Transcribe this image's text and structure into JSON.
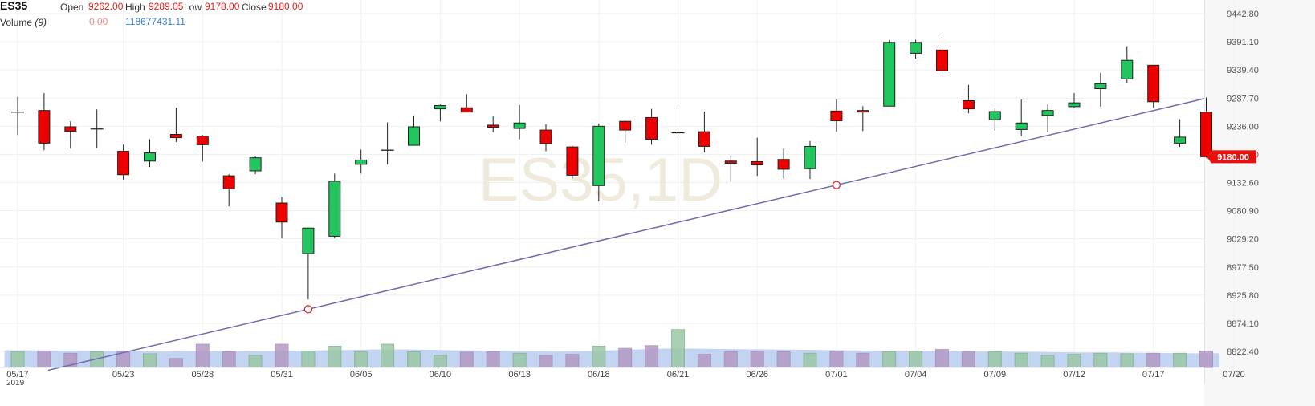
{
  "header": {
    "symbol": "ES35",
    "open_label": "Open",
    "open_value": "9262.00",
    "high_label": "High",
    "high_value": "9289.05",
    "low_label": "Low",
    "low_value": "9178.00",
    "close_label": "Close",
    "close_value": "9180.00",
    "volume_label": "Volume",
    "volume_period": "(9)",
    "volume_value_1": "0.00",
    "volume_value_2": "118677431.11"
  },
  "watermark": "ES35,1D",
  "colors": {
    "up": "#22c55e",
    "down": "#ee0000",
    "trendline": "#6d6db0",
    "volume_bar": "#9a9ac6",
    "volume_ma_area": "#b7cdf0",
    "last_price_bg": "#e8100d"
  },
  "chart_data": {
    "type": "candlestick",
    "y_axis": {
      "ticks": [
        "9442.80",
        "9391.10",
        "9339.40",
        "9287.70",
        "9236.00",
        "9184.30",
        "9132.60",
        "9080.90",
        "9029.20",
        "8977.50",
        "8925.80",
        "8874.10",
        "8822.40"
      ],
      "range": [
        8822.4,
        9442.8
      ]
    },
    "x_axis": {
      "tick_labels": [
        "05/17",
        "05/23",
        "05/28",
        "05/31",
        "06/05",
        "06/10",
        "06/13",
        "06/18",
        "06/21",
        "06/26",
        "07/01",
        "07/04",
        "07/09",
        "07/12",
        "07/17",
        "07/20"
      ],
      "year_label": "2019"
    },
    "last_price": "9180.00",
    "candles": [
      {
        "date": "05/17",
        "o": 9262,
        "h": 9290,
        "l": 9220,
        "c": 9262
      },
      {
        "date": "05/20",
        "o": 9265,
        "h": 9297,
        "l": 9192,
        "c": 9205
      },
      {
        "date": "05/21",
        "o": 9235,
        "h": 9245,
        "l": 9195,
        "c": 9227
      },
      {
        "date": "05/22",
        "o": 9231,
        "h": 9267,
        "l": 9196,
        "c": 9231
      },
      {
        "date": "05/23",
        "o": 9190,
        "h": 9202,
        "l": 9138,
        "c": 9147
      },
      {
        "date": "05/24",
        "o": 9172,
        "h": 9212,
        "l": 9161,
        "c": 9187
      },
      {
        "date": "05/27",
        "o": 9221,
        "h": 9270,
        "l": 9207,
        "c": 9215
      },
      {
        "date": "05/28",
        "o": 9218,
        "h": 9220,
        "l": 9171,
        "c": 9202
      },
      {
        "date": "05/29",
        "o": 9145,
        "h": 9148,
        "l": 9089,
        "c": 9121
      },
      {
        "date": "05/30",
        "o": 9154,
        "h": 9181,
        "l": 9148,
        "c": 9178
      },
      {
        "date": "05/31",
        "o": 9095,
        "h": 9106,
        "l": 9030,
        "c": 9060
      },
      {
        "date": "06/03",
        "o": 9002,
        "h": 9050,
        "l": 8918,
        "c": 9049
      },
      {
        "date": "06/04",
        "o": 9034,
        "h": 9149,
        "l": 9030,
        "c": 9135
      },
      {
        "date": "06/05",
        "o": 9166,
        "h": 9193,
        "l": 9149,
        "c": 9174
      },
      {
        "date": "06/06",
        "o": 9192,
        "h": 9243,
        "l": 9166,
        "c": 9192
      },
      {
        "date": "06/07",
        "o": 9201,
        "h": 9256,
        "l": 9201,
        "c": 9235
      },
      {
        "date": "06/10",
        "o": 9268,
        "h": 9276,
        "l": 9245,
        "c": 9274
      },
      {
        "date": "06/11",
        "o": 9270,
        "h": 9295,
        "l": 9262,
        "c": 9262
      },
      {
        "date": "06/12",
        "o": 9238,
        "h": 9255,
        "l": 9225,
        "c": 9234
      },
      {
        "date": "06/13",
        "o": 9232,
        "h": 9275,
        "l": 9212,
        "c": 9242
      },
      {
        "date": "06/14",
        "o": 9229,
        "h": 9240,
        "l": 9190,
        "c": 9204
      },
      {
        "date": "06/17",
        "o": 9198,
        "h": 9200,
        "l": 9140,
        "c": 9146
      },
      {
        "date": "06/18",
        "o": 9127,
        "h": 9241,
        "l": 9098,
        "c": 9236
      },
      {
        "date": "06/19",
        "o": 9245,
        "h": 9246,
        "l": 9205,
        "c": 9229
      },
      {
        "date": "06/20",
        "o": 9252,
        "h": 9268,
        "l": 9202,
        "c": 9212
      },
      {
        "date": "06/21",
        "o": 9224,
        "h": 9268,
        "l": 9211,
        "c": 9224
      },
      {
        "date": "06/24",
        "o": 9226,
        "h": 9263,
        "l": 9188,
        "c": 9199
      },
      {
        "date": "06/25",
        "o": 9172,
        "h": 9182,
        "l": 9134,
        "c": 9168
      },
      {
        "date": "06/26",
        "o": 9171,
        "h": 9215,
        "l": 9145,
        "c": 9165
      },
      {
        "date": "06/27",
        "o": 9175,
        "h": 9195,
        "l": 9140,
        "c": 9157
      },
      {
        "date": "06/28",
        "o": 9158,
        "h": 9209,
        "l": 9139,
        "c": 9199
      },
      {
        "date": "07/01",
        "o": 9264,
        "h": 9285,
        "l": 9226,
        "c": 9246
      },
      {
        "date": "07/02",
        "o": 9265,
        "h": 9273,
        "l": 9227,
        "c": 9263
      },
      {
        "date": "07/03",
        "o": 9273,
        "h": 9394,
        "l": 9273,
        "c": 9390
      },
      {
        "date": "07/04",
        "o": 9370,
        "h": 9395,
        "l": 9360,
        "c": 9390
      },
      {
        "date": "07/05",
        "o": 9376,
        "h": 9400,
        "l": 9332,
        "c": 9338
      },
      {
        "date": "07/08",
        "o": 9283,
        "h": 9312,
        "l": 9260,
        "c": 9268
      },
      {
        "date": "07/09",
        "o": 9248,
        "h": 9268,
        "l": 9228,
        "c": 9263
      },
      {
        "date": "07/10",
        "o": 9230,
        "h": 9285,
        "l": 9218,
        "c": 9242
      },
      {
        "date": "07/11",
        "o": 9256,
        "h": 9276,
        "l": 9225,
        "c": 9265
      },
      {
        "date": "07/12",
        "o": 9272,
        "h": 9297,
        "l": 9269,
        "c": 9279
      },
      {
        "date": "07/15",
        "o": 9305,
        "h": 9334,
        "l": 9272,
        "c": 9314
      },
      {
        "date": "07/16",
        "o": 9323,
        "h": 9383,
        "l": 9315,
        "c": 9357
      },
      {
        "date": "07/17",
        "o": 9348,
        "h": 9348,
        "l": 9270,
        "c": 9281
      },
      {
        "date": "07/18",
        "o": 9205,
        "h": 9249,
        "l": 9198,
        "c": 9216
      },
      {
        "date": "07/19",
        "o": 9262,
        "h": 9289.05,
        "l": 9178,
        "c": 9180
      }
    ],
    "volume": [
      0.58,
      0.6,
      0.52,
      0.58,
      0.6,
      0.5,
      0.33,
      0.85,
      0.58,
      0.44,
      0.85,
      0.6,
      0.78,
      0.58,
      0.85,
      0.58,
      0.44,
      0.56,
      0.58,
      0.52,
      0.44,
      0.48,
      0.78,
      0.7,
      0.8,
      1.39,
      0.48,
      0.58,
      0.6,
      0.58,
      0.52,
      0.6,
      0.52,
      0.58,
      0.6,
      0.66,
      0.58,
      0.58,
      0.52,
      0.44,
      0.48,
      0.52,
      0.5,
      0.52,
      0.52,
      0.6
    ],
    "volume_ma": [
      0.63,
      0.63,
      0.62,
      0.61,
      0.6,
      0.59,
      0.58,
      0.6,
      0.6,
      0.59,
      0.6,
      0.61,
      0.63,
      0.64,
      0.66,
      0.66,
      0.65,
      0.63,
      0.62,
      0.61,
      0.59,
      0.58,
      0.6,
      0.63,
      0.66,
      0.69,
      0.69,
      0.68,
      0.67,
      0.66,
      0.65,
      0.64,
      0.63,
      0.61,
      0.59,
      0.6,
      0.59,
      0.58,
      0.58,
      0.57,
      0.56,
      0.55,
      0.55,
      0.54,
      0.53,
      0.52
    ],
    "trendline": {
      "points": [
        {
          "index": 11,
          "price": 8900
        },
        {
          "index": 31,
          "price": 9128
        }
      ]
    }
  }
}
